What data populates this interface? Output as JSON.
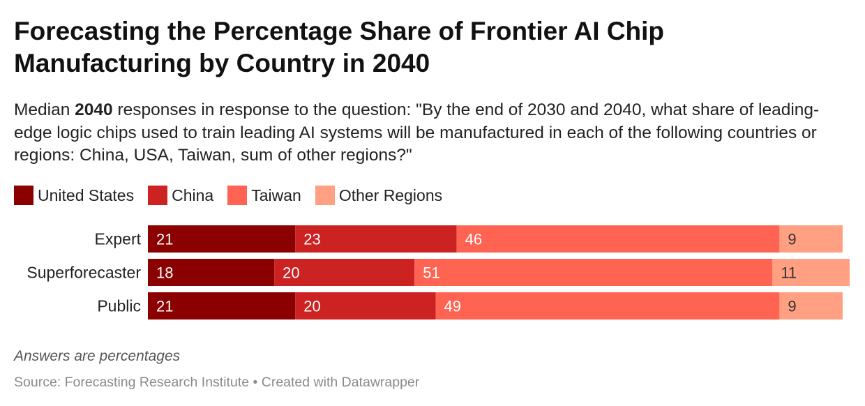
{
  "title": "Forecasting the Percentage Share of Frontier AI Chip Manufacturing by Country in 2040",
  "subtitle": {
    "prefix": "Median ",
    "bold": "2040",
    "suffix": " responses in response to the question: \"By the end of 2030 and 2040, what share of leading-edge logic chips used to train leading AI systems will be manufactured in each of the following countries or regions: China, USA, Taiwan, sum of other regions?\""
  },
  "notes": "Answers are percentages",
  "footer": "Source: Forecasting Research Institute • Created with Datawrapper",
  "chart_data": {
    "type": "bar",
    "orientation": "horizontal",
    "stacked": true,
    "categories": [
      "Expert",
      "Superforecaster",
      "Public"
    ],
    "series": [
      {
        "name": "United States",
        "color": "#8b0000",
        "values": [
          21,
          18,
          21
        ]
      },
      {
        "name": "China",
        "color": "#cc2222",
        "values": [
          23,
          20,
          20
        ]
      },
      {
        "name": "Taiwan",
        "color": "#ff6452",
        "values": [
          46,
          51,
          49
        ]
      },
      {
        "name": "Other Regions",
        "color": "#ffa083",
        "values": [
          9,
          11,
          9
        ]
      }
    ],
    "label_colors": [
      "#ffffff",
      "#ffffff",
      "#ffffff",
      "#333333"
    ],
    "xlim": [
      0,
      100
    ],
    "legend": "top-left",
    "grid": false
  }
}
